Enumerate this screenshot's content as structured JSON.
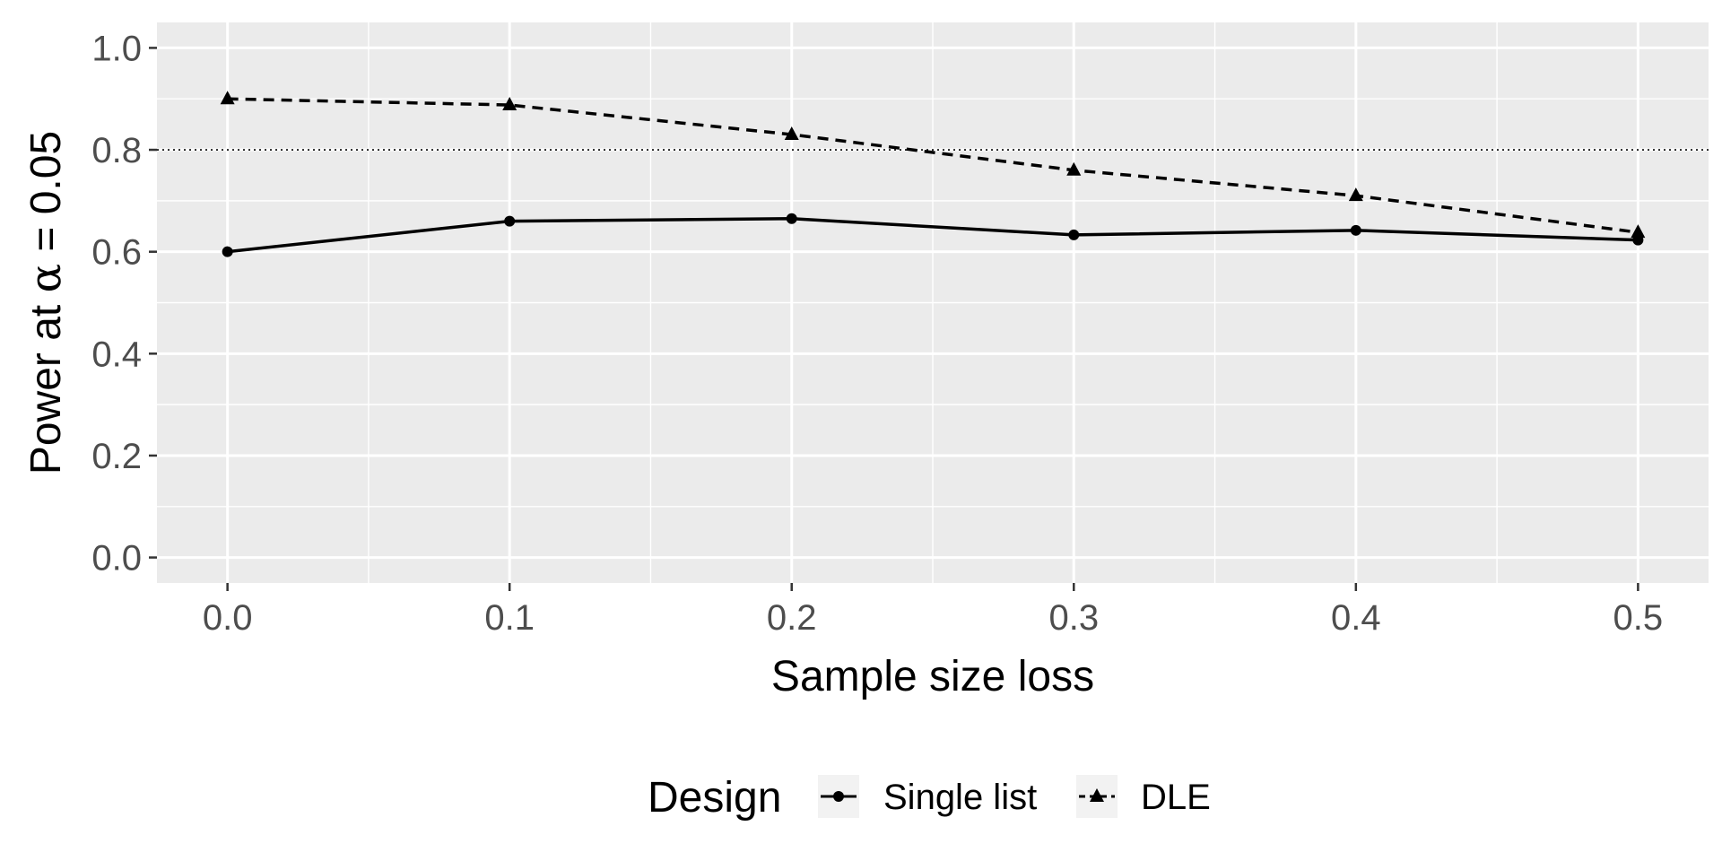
{
  "chart_data": {
    "type": "line",
    "title": "",
    "xlabel": "Sample size loss",
    "ylabel": {
      "prefix": "Power at ",
      "symbol": "α",
      "suffix": " = 0.05"
    },
    "x": [
      0.0,
      0.1,
      0.2,
      0.3,
      0.4,
      0.5
    ],
    "x_tick_labels": [
      "0.0",
      "0.1",
      "0.2",
      "0.3",
      "0.4",
      "0.5"
    ],
    "y_tick_labels": [
      "0.0",
      "0.2",
      "0.4",
      "0.6",
      "0.8",
      "1.0"
    ],
    "xlim": [
      -0.025,
      0.525
    ],
    "ylim": [
      -0.05,
      1.05
    ],
    "reference_line": {
      "y": 0.8,
      "style": "dotted",
      "color": "#000000"
    },
    "series": [
      {
        "name": "Single list",
        "values": [
          0.6,
          0.66,
          0.665,
          0.633,
          0.642,
          0.623
        ],
        "line": "solid",
        "marker": "circle",
        "color": "#000000"
      },
      {
        "name": "DLE",
        "values": [
          0.9,
          0.888,
          0.83,
          0.76,
          0.71,
          0.638
        ],
        "line": "dashed",
        "marker": "triangle",
        "color": "#000000"
      }
    ],
    "grid": true,
    "panel_background": "#ebebeb",
    "legend": {
      "title": "Design",
      "position": "bottom"
    }
  }
}
